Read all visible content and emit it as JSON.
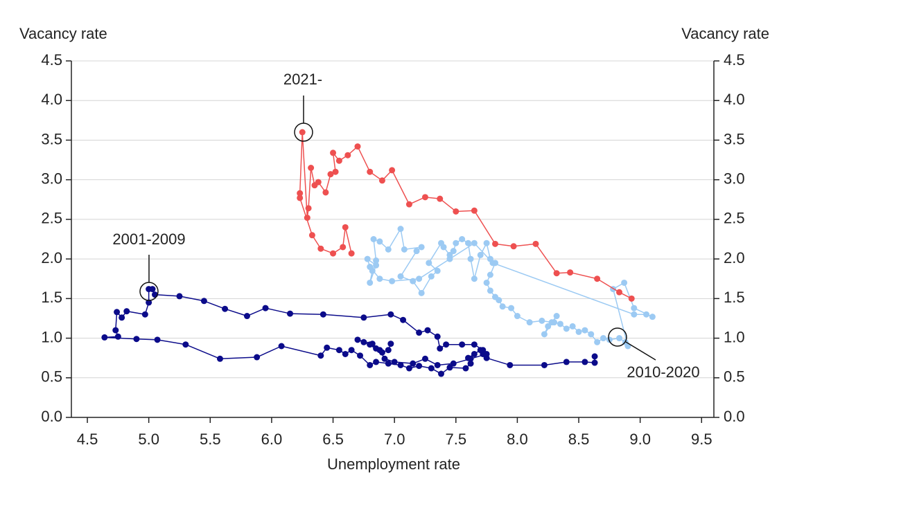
{
  "chart_data": {
    "type": "line",
    "x_label": "Unemployment rate",
    "y_label": "Vacancy rate",
    "y2_label": "Vacancy rate",
    "xlim": [
      4.37,
      9.6
    ],
    "xticks": [
      4.5,
      {
        "value": 5.0,
        "label": "5.0"
      },
      5.5,
      {
        "value": 6.0,
        "label": "6.0"
      },
      6.5,
      {
        "value": 7.0,
        "label": "7.0"
      },
      7.5,
      {
        "value": 8.0,
        "label": "8.0"
      },
      8.5,
      {
        "value": 9.0,
        "label": "9.0"
      },
      9.5
    ],
    "ylim": [
      0,
      4.5
    ],
    "yticks": [
      {
        "value": 0,
        "label": "0.0"
      },
      0.5,
      {
        "value": 1,
        "label": "1.0"
      },
      1.5,
      {
        "value": 2,
        "label": "2.0"
      },
      2.5,
      {
        "value": 3,
        "label": "3.0"
      },
      3.5,
      {
        "value": 4,
        "label": "4.0"
      },
      4.5
    ],
    "y2lim": [
      0,
      4.5
    ],
    "y2ticks": [
      {
        "value": 0,
        "label": "0.0"
      },
      0.5,
      {
        "value": 1,
        "label": "1.0"
      },
      1.5,
      {
        "value": 2,
        "label": "2.0"
      },
      2.5,
      {
        "value": 3,
        "label": "3.0"
      },
      3.5,
      {
        "value": 4,
        "label": "4.0"
      },
      4.5
    ],
    "grid": true,
    "series": [
      {
        "name": "2001-2009",
        "color": "#0b0b8a",
        "x": [
          8.63,
          8.63,
          8.55,
          8.4,
          8.22,
          7.94,
          7.75,
          7.72,
          7.7,
          7.65,
          7.6,
          7.62,
          7.58,
          7.45,
          7.38,
          7.3,
          7.2,
          7.12,
          7.05,
          6.95,
          6.85,
          6.8,
          6.72,
          6.65,
          6.6,
          6.55,
          6.45,
          6.4,
          6.08,
          5.88,
          5.58,
          5.3,
          5.07,
          4.9,
          4.64,
          4.75,
          4.73,
          4.74,
          4.78,
          4.82,
          4.97,
          5.0,
          5.0,
          5.03,
          5.05,
          5.25,
          5.45,
          5.62,
          5.8,
          5.95,
          6.15,
          6.42,
          6.75,
          6.97,
          7.07,
          7.2,
          7.27,
          7.35,
          7.37,
          7.42,
          7.55,
          7.65,
          7.72,
          7.75,
          7.62,
          7.48,
          7.35,
          7.25,
          7.15,
          7.0,
          6.92,
          6.88,
          6.8,
          6.85,
          6.75,
          6.7,
          6.82,
          6.9,
          6.95,
          6.97
        ],
        "values": [
          0.77,
          0.69,
          0.7,
          0.7,
          0.66,
          0.66,
          0.75,
          0.8,
          0.85,
          0.8,
          0.75,
          0.68,
          0.62,
          0.63,
          0.55,
          0.62,
          0.65,
          0.62,
          0.66,
          0.68,
          0.7,
          0.66,
          0.78,
          0.85,
          0.8,
          0.85,
          0.88,
          0.78,
          0.9,
          0.76,
          0.74,
          0.92,
          0.98,
          0.99,
          1.01,
          1.02,
          1.1,
          1.33,
          1.26,
          1.34,
          1.3,
          1.45,
          1.62,
          1.62,
          1.55,
          1.53,
          1.47,
          1.37,
          1.28,
          1.38,
          1.31,
          1.3,
          1.26,
          1.3,
          1.23,
          1.07,
          1.1,
          1.02,
          0.87,
          0.92,
          0.92,
          0.92,
          0.85,
          0.8,
          0.74,
          0.68,
          0.66,
          0.74,
          0.68,
          0.7,
          0.74,
          0.85,
          0.92,
          0.87,
          0.95,
          0.98,
          0.93,
          0.82,
          0.85,
          0.93
        ]
      },
      {
        "name": "2010-2020",
        "color": "#9ccaf3",
        "x": [
          8.88,
          8.83,
          8.75,
          8.7,
          8.65,
          8.6,
          8.55,
          8.5,
          8.45,
          8.4,
          8.35,
          8.3,
          8.25,
          8.22,
          8.32,
          8.28,
          8.2,
          8.1,
          8.0,
          7.95,
          7.88,
          7.85,
          7.82,
          7.78,
          7.75,
          7.78,
          7.82,
          7.78,
          7.75,
          7.7,
          7.65,
          7.62,
          7.6,
          7.55,
          7.5,
          7.48,
          7.45,
          7.4,
          7.38,
          7.28,
          7.35,
          7.3,
          7.22,
          7.15,
          7.05,
          7.18,
          7.22,
          7.08,
          7.05,
          6.95,
          6.88,
          6.83,
          6.85,
          6.82,
          6.8,
          6.85,
          6.78,
          6.8,
          6.88,
          6.98,
          7.2,
          7.45,
          7.65,
          7.8,
          8.95,
          9.05,
          9.1,
          8.95,
          8.87,
          8.78,
          8.9
        ],
        "values": [
          0.95,
          1.0,
          0.98,
          1.0,
          0.95,
          1.05,
          1.1,
          1.08,
          1.15,
          1.12,
          1.18,
          1.2,
          1.15,
          1.05,
          1.28,
          1.2,
          1.22,
          1.2,
          1.28,
          1.38,
          1.4,
          1.48,
          1.52,
          1.6,
          1.7,
          1.8,
          1.95,
          2.0,
          2.2,
          2.05,
          1.75,
          2.0,
          2.2,
          2.25,
          2.2,
          2.1,
          2.05,
          2.15,
          2.2,
          1.95,
          1.85,
          1.78,
          1.57,
          1.72,
          1.78,
          2.1,
          2.15,
          2.12,
          2.38,
          2.12,
          2.22,
          2.25,
          1.98,
          1.85,
          1.7,
          1.92,
          2.0,
          1.9,
          1.75,
          1.72,
          1.75,
          2.0,
          2.2,
          1.95,
          1.3,
          1.3,
          1.27,
          1.38,
          1.7,
          1.62,
          0.9
        ]
      },
      {
        "name": "2021-",
        "color": "#ee5050",
        "x": [
          8.93,
          8.83,
          8.65,
          8.43,
          8.32,
          8.15,
          7.97,
          7.82,
          7.65,
          7.5,
          7.37,
          7.25,
          7.12,
          6.98,
          6.9,
          6.8,
          6.7,
          6.62,
          6.55,
          6.5,
          6.52,
          6.48,
          6.44,
          6.38,
          6.35,
          6.32,
          6.3,
          6.29,
          6.25,
          6.23,
          6.23,
          6.33,
          6.4,
          6.5,
          6.58,
          6.6,
          6.65
        ],
        "values": [
          1.5,
          1.58,
          1.75,
          1.83,
          1.82,
          2.19,
          2.16,
          2.19,
          2.61,
          2.6,
          2.76,
          2.78,
          2.69,
          3.12,
          2.99,
          3.1,
          3.42,
          3.31,
          3.24,
          3.34,
          3.1,
          3.07,
          2.84,
          2.97,
          2.93,
          3.15,
          2.64,
          2.52,
          3.6,
          2.83,
          2.77,
          2.3,
          2.13,
          2.07,
          2.15,
          2.4,
          2.07
        ]
      }
    ]
  }
}
